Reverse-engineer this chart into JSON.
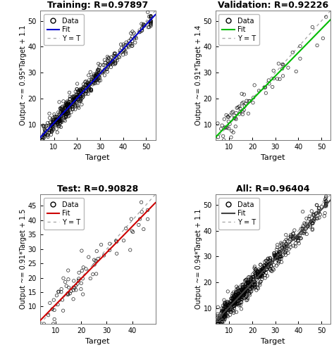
{
  "subplots": [
    {
      "title": "Training: R=0.97897",
      "ylabel": "Output ~= 0.95*Target + 1.1",
      "xlabel": "Target",
      "fit_color": "#0000CC",
      "fit_slope": 0.95,
      "fit_intercept": 1.1,
      "xlim": [
        4,
        54
      ],
      "ylim": [
        4,
        54
      ],
      "xticks": [
        10,
        20,
        30,
        40,
        50
      ],
      "yticks": [
        10,
        20,
        30,
        40,
        50
      ],
      "n_points": 500,
      "seed": 1,
      "noise": 1.8,
      "x_mean": 18,
      "x_std": 9,
      "x_min": 5,
      "x_max": 52
    },
    {
      "title": "Validation: R=0.92226",
      "ylabel": "Output ~= 0.91*Target + 1.4",
      "xlabel": "Target",
      "fit_color": "#00BB00",
      "fit_slope": 0.91,
      "fit_intercept": 1.4,
      "xlim": [
        4,
        54
      ],
      "ylim": [
        4,
        54
      ],
      "xticks": [
        10,
        20,
        30,
        40,
        50
      ],
      "yticks": [
        10,
        20,
        30,
        40,
        50
      ],
      "n_points": 75,
      "seed": 3,
      "noise": 3.5,
      "x_mean": 18,
      "x_std": 8,
      "x_min": 5,
      "x_max": 52
    },
    {
      "title": "Test: R=0.90828",
      "ylabel": "Output ~= 0.91*Target + 1.5",
      "xlabel": "Target",
      "fit_color": "#CC0000",
      "fit_slope": 0.91,
      "fit_intercept": 1.5,
      "xlim": [
        4,
        49
      ],
      "ylim": [
        4,
        49
      ],
      "xticks": [
        10,
        20,
        30,
        40
      ],
      "yticks": [
        10,
        15,
        20,
        25,
        30,
        35,
        40,
        45
      ],
      "n_points": 75,
      "seed": 5,
      "noise": 3.5,
      "x_mean": 18,
      "x_std": 7,
      "x_min": 5,
      "x_max": 46
    },
    {
      "title": "All: R=0.96404",
      "ylabel": "Output ~= 0.94*Target + 1.1",
      "xlabel": "Target",
      "fit_color": "#444444",
      "fit_slope": 0.94,
      "fit_intercept": 1.1,
      "xlim": [
        4,
        54
      ],
      "ylim": [
        4,
        54
      ],
      "xticks": [
        10,
        20,
        30,
        40,
        50
      ],
      "yticks": [
        10,
        20,
        30,
        40,
        50
      ],
      "n_points": 650,
      "seed": 7,
      "noise": 2.0,
      "x_mean": 18,
      "x_std": 9,
      "x_min": 5,
      "x_max": 52
    }
  ],
  "background_color": "#ffffff",
  "scatter_color": "#000000",
  "yt_color": "#aaaaaa",
  "title_fontsize": 9,
  "label_fontsize": 8,
  "tick_fontsize": 7,
  "legend_fontsize": 7
}
